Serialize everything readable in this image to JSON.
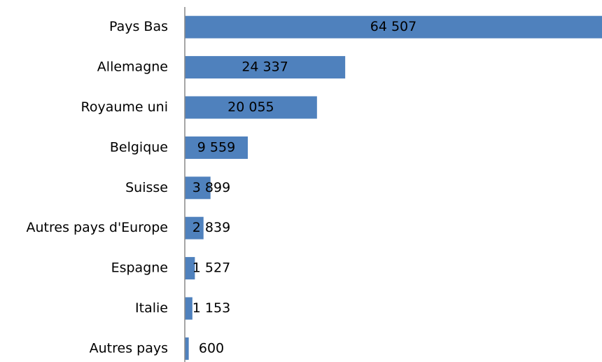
{
  "chart_data": {
    "type": "bar",
    "orientation": "horizontal",
    "categories": [
      "Pays Bas",
      "Allemagne",
      "Royaume uni",
      "Belgique",
      "Suisse",
      "Autres pays d'Europe",
      "Espagne",
      "Italie",
      "Autres pays"
    ],
    "values": [
      64507,
      24337,
      20055,
      9559,
      3899,
      2839,
      1527,
      1153,
      600
    ],
    "value_labels": [
      "64 507",
      "24 337",
      "20 055",
      "9 559",
      "3 899",
      "2 839",
      "1 527",
      "1 153",
      "600"
    ],
    "color": "#4f81bd",
    "xlim": [
      0,
      63300
    ]
  }
}
